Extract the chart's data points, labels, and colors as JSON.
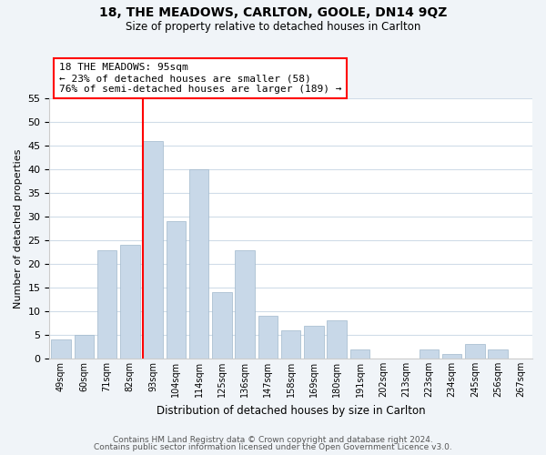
{
  "title": "18, THE MEADOWS, CARLTON, GOOLE, DN14 9QZ",
  "subtitle": "Size of property relative to detached houses in Carlton",
  "xlabel": "Distribution of detached houses by size in Carlton",
  "ylabel": "Number of detached properties",
  "bar_color": "#c8d8e8",
  "bar_edgecolor": "#a0b8cc",
  "categories": [
    "49sqm",
    "60sqm",
    "71sqm",
    "82sqm",
    "93sqm",
    "104sqm",
    "114sqm",
    "125sqm",
    "136sqm",
    "147sqm",
    "158sqm",
    "169sqm",
    "180sqm",
    "191sqm",
    "202sqm",
    "213sqm",
    "223sqm",
    "234sqm",
    "245sqm",
    "256sqm",
    "267sqm"
  ],
  "values": [
    4,
    5,
    23,
    24,
    46,
    29,
    40,
    14,
    23,
    9,
    6,
    7,
    8,
    2,
    0,
    0,
    2,
    1,
    3,
    2,
    0
  ],
  "ylim": [
    0,
    55
  ],
  "yticks": [
    0,
    5,
    10,
    15,
    20,
    25,
    30,
    35,
    40,
    45,
    50,
    55
  ],
  "red_line_index": 4,
  "annotation_title": "18 THE MEADOWS: 95sqm",
  "annotation_line1": "← 23% of detached houses are smaller (58)",
  "annotation_line2": "76% of semi-detached houses are larger (189) →",
  "footer1": "Contains HM Land Registry data © Crown copyright and database right 2024.",
  "footer2": "Contains public sector information licensed under the Open Government Licence v3.0.",
  "background_color": "#f0f4f8",
  "plot_background": "#ffffff",
  "grid_color": "#d0dce8"
}
